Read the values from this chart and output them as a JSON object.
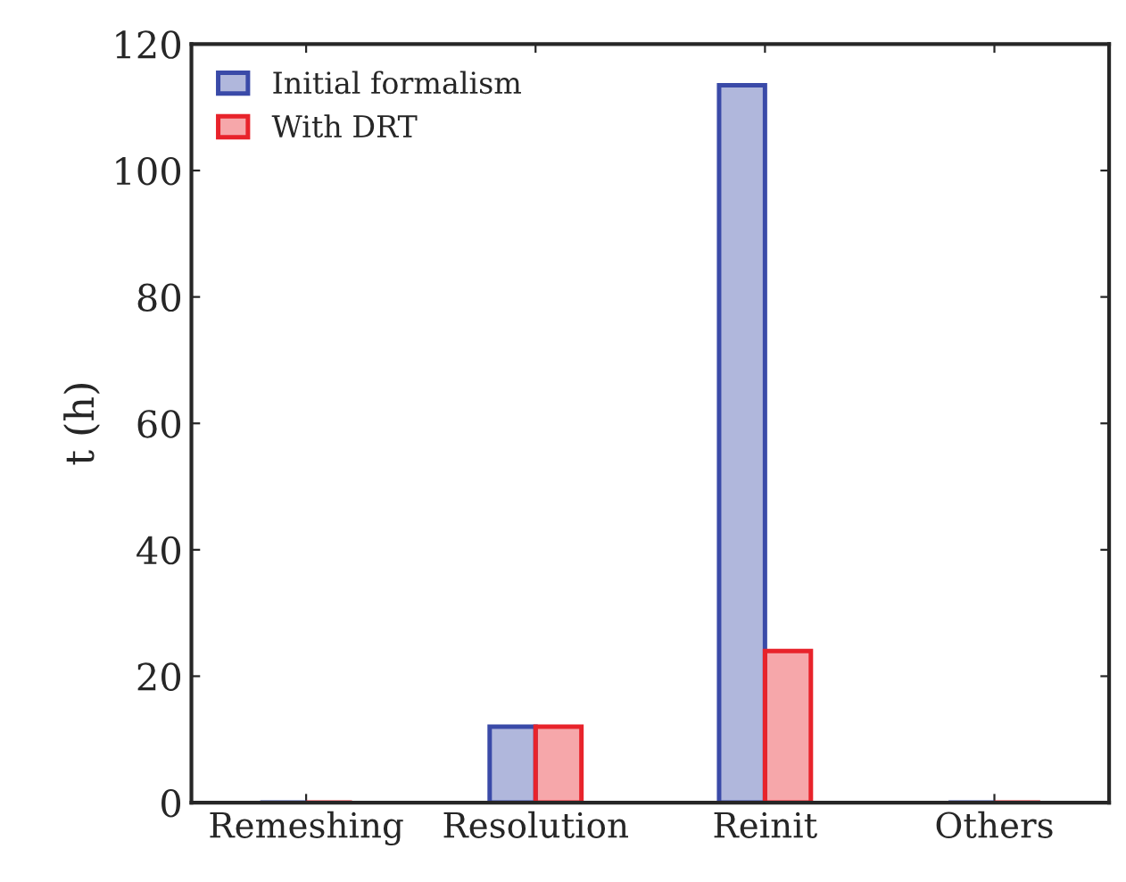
{
  "chart_data": {
    "type": "bar",
    "ylabel": "t (h)",
    "categories": [
      "Remeshing",
      "Resolution",
      "Reinit",
      "Others"
    ],
    "series": [
      {
        "name": "Initial formalism",
        "color": "#3a4aa8",
        "values": [
          0,
          12,
          113.5,
          0
        ]
      },
      {
        "name": "With DRT",
        "color": "#e8232b",
        "values": [
          0,
          12,
          24,
          0
        ]
      }
    ],
    "ylim": [
      0,
      120
    ],
    "yticks": [
      0,
      20,
      40,
      60,
      80,
      100,
      120
    ],
    "grid": false,
    "legend": "top left"
  }
}
